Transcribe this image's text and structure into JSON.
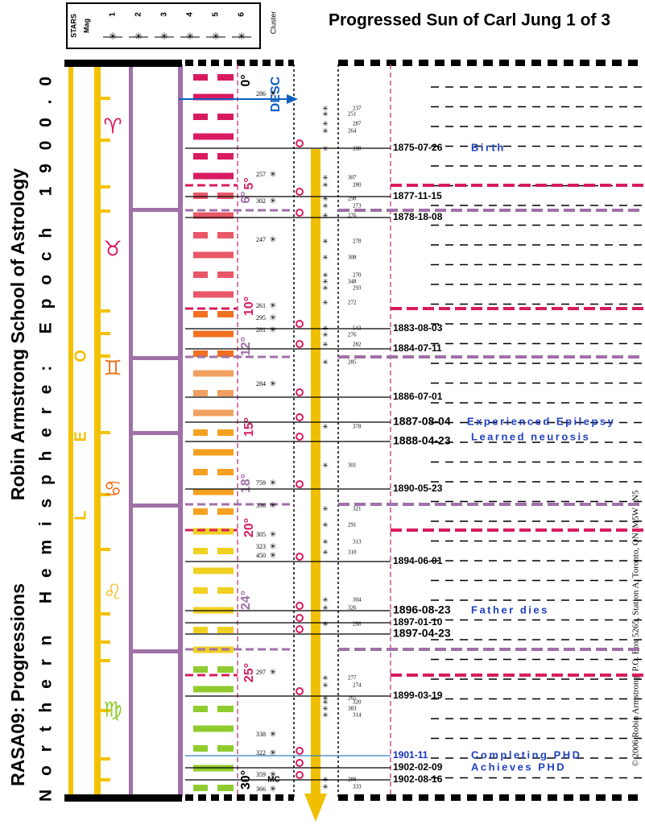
{
  "title": "Progressed Sun of Carl Jung 1 of 3",
  "legend": {
    "stars": "STARS",
    "mag": "Mag",
    "magnitudes": [
      "1",
      "2",
      "3",
      "4",
      "5",
      "6"
    ],
    "cluster": "Cluster"
  },
  "side_text": {
    "school": "Robin Armstrong School of Astrology",
    "series": "RASA09: Progressions",
    "hemisphere": "N o r t h e r n   H e m i s p h e r e :   E p o c h   1 9 0 0 . 0"
  },
  "constellation": "L E O",
  "signs": [
    "♈",
    "♉",
    "♊",
    "♋",
    "♌",
    "♍"
  ],
  "degrees": [
    "0°",
    "5°",
    "6°",
    "10°",
    "12°",
    "15°",
    "18°",
    "20°",
    "24°",
    "25°",
    "30°"
  ],
  "points": [
    "DESC",
    "MC"
  ],
  "events": [
    {
      "date": "1875-07-26",
      "note": "Birth"
    },
    {
      "date": "1877-11-15"
    },
    {
      "date": "1878-18-08"
    },
    {
      "date": "1883-08-03"
    },
    {
      "date": "1884-07-11"
    },
    {
      "date": "1886-07-01"
    },
    {
      "date": "1887-08-04",
      "note": "Experienced Epilepsy"
    },
    {
      "date": "1888-04-23",
      "note": "Learned neurosis"
    },
    {
      "date": "1890-05-23"
    },
    {
      "date": "1894-06-01"
    },
    {
      "date": "1896-08-23",
      "note": "Father dies"
    },
    {
      "date": "1897-01-10"
    },
    {
      "date": "1897-04-23"
    },
    {
      "date": "1899-03-19"
    },
    {
      "date": "1901-11",
      "note": "Completing PHD"
    },
    {
      "date": "1902-02-09",
      "note": "Achieves PHD"
    },
    {
      "date": "1902-08-16"
    }
  ],
  "stars_left": [
    "286",
    "257",
    "302",
    "247",
    "261",
    "295",
    "281",
    "284",
    "759",
    "336",
    "305",
    "323",
    "450",
    "297",
    "338",
    "322",
    "359",
    "366"
  ],
  "stars_right": [
    "237",
    "251",
    "287",
    "264",
    "288",
    "307",
    "280",
    "298",
    "273",
    "276",
    "278",
    "308",
    "270",
    "348",
    "293",
    "272",
    "543",
    "276",
    "282",
    "285",
    "378",
    "301",
    "321",
    "291",
    "313",
    "310",
    "304",
    "326",
    "288",
    "277",
    "274",
    "265",
    "320",
    "383",
    "314",
    "288",
    "333"
  ],
  "copyright": "© 2006 Robin Armstrong, P.O. Box 5265, Station A, Toronto, ON, M5W 1N5"
}
